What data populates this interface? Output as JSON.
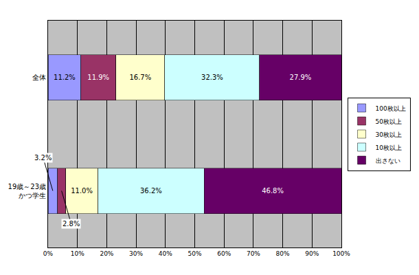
{
  "chart_data": {
    "type": "bar",
    "orientation": "horizontal",
    "stacked": true,
    "data_labels": true,
    "grid": true,
    "legend": "right",
    "categories": [
      "全体",
      "19歳～23歳\nかつ学生"
    ],
    "series": [
      {
        "name": "100枚以上",
        "color": "#9999FF",
        "values": [
          11.2,
          3.2
        ],
        "value_labels": [
          "11.2%",
          "3.2%"
        ]
      },
      {
        "name": "50枚以上",
        "color": "#993366",
        "values": [
          11.9,
          2.8
        ],
        "value_labels": [
          "11.9%",
          "2.8%"
        ]
      },
      {
        "name": "30枚以上",
        "color": "#FFFFCC",
        "values": [
          16.7,
          11.0
        ],
        "value_labels": [
          "16.7%",
          "11.0%"
        ]
      },
      {
        "name": "10枚以上",
        "color": "#CCFFFF",
        "values": [
          32.3,
          36.2
        ],
        "value_labels": [
          "32.3%",
          "36.2%"
        ]
      },
      {
        "name": "出さない",
        "color": "#660066",
        "values": [
          27.9,
          46.8
        ],
        "value_labels": [
          "27.9%",
          "46.8%"
        ]
      }
    ],
    "xlim": [
      0,
      100
    ],
    "xticks": [
      {
        "value": 0,
        "label": "0%"
      },
      {
        "value": 10,
        "label": "10%"
      },
      {
        "value": 20,
        "label": "20%"
      },
      {
        "value": 30,
        "label": "30%"
      },
      {
        "value": 40,
        "label": "40%"
      },
      {
        "value": 50,
        "label": "50%"
      },
      {
        "value": 60,
        "label": "60%"
      },
      {
        "value": 70,
        "label": "70%"
      },
      {
        "value": 80,
        "label": "80%"
      },
      {
        "value": 90,
        "label": "90%"
      },
      {
        "value": 100,
        "label": "100%"
      }
    ]
  }
}
